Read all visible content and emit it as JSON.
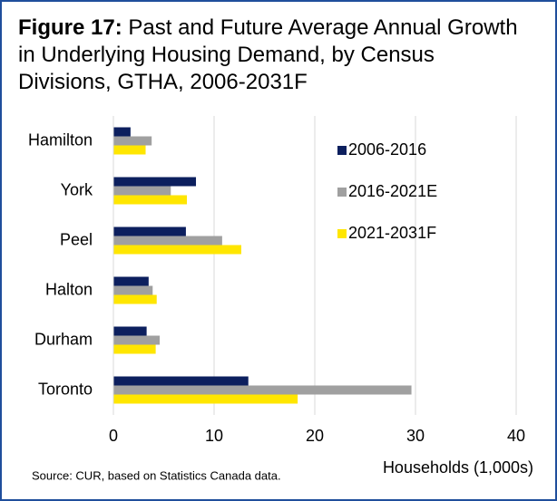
{
  "chart_data": {
    "type": "hbar",
    "title_label": "Figure 17:",
    "title": "Past and Future Average Annual Growth in Underlying Housing Demand, by Census Divisions, GTHA, 2006-2031F",
    "categories": [
      "Hamilton",
      "York",
      "Peel",
      "Halton",
      "Durham",
      "Toronto"
    ],
    "series": [
      {
        "name": "2006-2016",
        "color": "#0c1f5e",
        "values": [
          1.7,
          8.2,
          7.2,
          3.5,
          3.3,
          13.4
        ]
      },
      {
        "name": "2016-2021E",
        "color": "#a0a0a0",
        "values": [
          3.8,
          5.7,
          10.8,
          3.9,
          4.6,
          29.6
        ]
      },
      {
        "name": "2021-2031F",
        "color": "#ffe600",
        "values": [
          3.2,
          7.3,
          12.7,
          4.3,
          4.2,
          18.3
        ]
      }
    ],
    "xlim": [
      0,
      40
    ],
    "xticks": [
      0,
      10,
      20,
      30,
      40
    ],
    "grid": true,
    "xlabel": "Households (1,000s)",
    "legend": "upper right",
    "source": "Source: CUR, based on Statistics Canada data."
  }
}
